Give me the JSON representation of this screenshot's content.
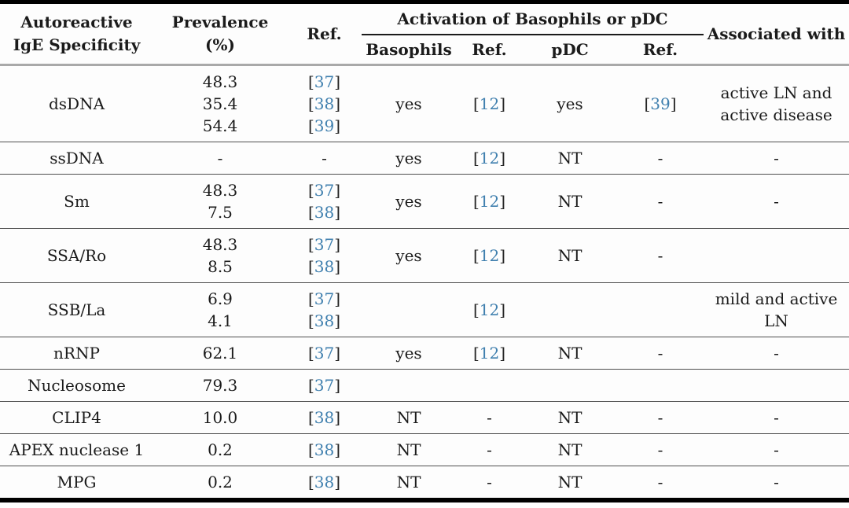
{
  "meta": {
    "background": "#fdfdfd",
    "text_color": "#1b1b1b",
    "citation_color": "#3f7fae",
    "header_rule_color": "#a9a9a9",
    "row_line_color": "#4f4f4f",
    "frame_color": "#000000"
  },
  "citation_brackets": {
    "open": "[",
    "close": "]"
  },
  "table": {
    "columns": {
      "specificity": "Autoreactive IgE Specificity",
      "prevalence": "Prevalence (%)",
      "ref": "Ref.",
      "activation_group": "Activation of Basophils or pDC",
      "basophils": "Basophils",
      "basophils_ref": "Ref.",
      "pdc": "pDC",
      "pdc_ref": "Ref.",
      "associated": "Associated with"
    },
    "rows": [
      {
        "name": "dsDNA",
        "prevalence": [
          "48.3",
          "35.4",
          "54.4"
        ],
        "prevalence_refs": [
          "37",
          "38",
          "39"
        ],
        "basophils": "yes",
        "basophils_ref": "12",
        "pdc": "yes",
        "pdc_ref": "39",
        "associated": "active LN and active disease"
      },
      {
        "name": "ssDNA",
        "prevalence": [
          "-"
        ],
        "prevalence_refs": [
          "-"
        ],
        "basophils": "yes",
        "basophils_ref": "12",
        "pdc": "NT",
        "pdc_ref": "-",
        "associated": "-"
      },
      {
        "name": "Sm",
        "prevalence": [
          "48.3",
          "7.5"
        ],
        "prevalence_refs": [
          "37",
          "38"
        ],
        "basophils": "yes",
        "basophils_ref": "12",
        "pdc": "NT",
        "pdc_ref": "-",
        "associated": "-"
      },
      {
        "name": "SSA/Ro",
        "prevalence": [
          "48.3",
          "8.5"
        ],
        "prevalence_refs": [
          "37",
          "38"
        ],
        "basophils": "yes",
        "basophils_ref": "12",
        "pdc": "NT",
        "pdc_ref": "-",
        "associated": ""
      },
      {
        "name": "SSB/La",
        "prevalence": [
          "6.9",
          "4.1"
        ],
        "prevalence_refs": [
          "37",
          "38"
        ],
        "basophils": "",
        "basophils_ref": "12",
        "pdc": "",
        "pdc_ref": "",
        "associated": "mild and active LN"
      },
      {
        "name": "nRNP",
        "prevalence": [
          "62.1"
        ],
        "prevalence_refs": [
          "37"
        ],
        "basophils": "yes",
        "basophils_ref": "12",
        "pdc": "NT",
        "pdc_ref": "-",
        "associated": "-"
      },
      {
        "name": "Nucleosome",
        "prevalence": [
          "79.3"
        ],
        "prevalence_refs": [
          "37"
        ],
        "basophils": "",
        "basophils_ref": "",
        "pdc": "",
        "pdc_ref": "",
        "associated": ""
      },
      {
        "name": "CLIP4",
        "prevalence": [
          "10.0"
        ],
        "prevalence_refs": [
          "38"
        ],
        "basophils": "NT",
        "basophils_ref": "-",
        "pdc": "NT",
        "pdc_ref": "-",
        "associated": "-"
      },
      {
        "name": "APEX nuclease 1",
        "prevalence": [
          "0.2"
        ],
        "prevalence_refs": [
          "38"
        ],
        "basophils": "NT",
        "basophils_ref": "-",
        "pdc": "NT",
        "pdc_ref": "-",
        "associated": "-"
      },
      {
        "name": "MPG",
        "prevalence": [
          "0.2"
        ],
        "prevalence_refs": [
          "38"
        ],
        "basophils": "NT",
        "basophils_ref": "-",
        "pdc": "NT",
        "pdc_ref": "-",
        "associated": "-"
      }
    ]
  }
}
